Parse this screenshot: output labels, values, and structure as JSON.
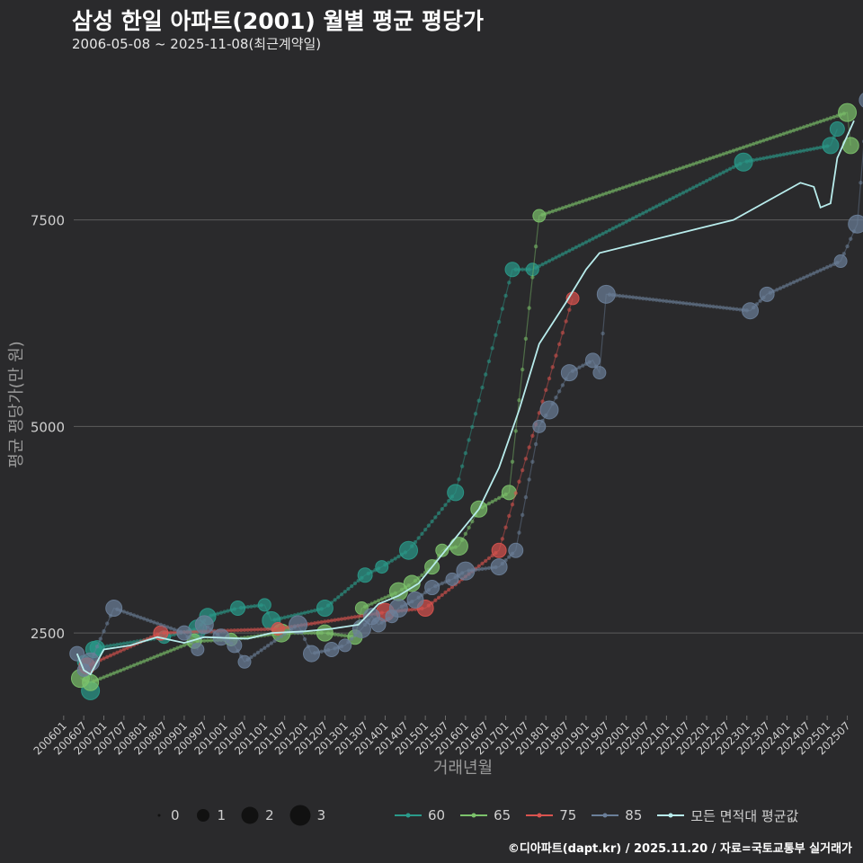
{
  "title": "삼성 한일 아파트(2001) 월별 평균 평당가",
  "subtitle": "2006-05-08 ~ 2025-11-08(최근계약일)",
  "caption": "©디아파트(dapt.kr) / 2025.11.20 / 자료=국토교통부 실거래가",
  "chart_data": {
    "type": "line",
    "title": "삼성 한일 아파트(2001) 월별 평균 평당가",
    "xlabel": "거래년월",
    "ylabel": "평균 평당가(만 원)",
    "x_unit": "months since 2006-01",
    "xlim": [
      3,
      236
    ],
    "ylim": [
      1500,
      9400
    ],
    "y_ticks": [
      2500,
      5000,
      7500
    ],
    "x_ticks": [
      "200601",
      "200607",
      "200701",
      "200707",
      "200801",
      "200807",
      "200901",
      "200907",
      "201001",
      "201007",
      "201101",
      "201107",
      "201201",
      "201207",
      "201301",
      "201307",
      "201401",
      "201407",
      "201501",
      "201507",
      "201601",
      "201607",
      "201701",
      "201707",
      "201801",
      "201807",
      "201901",
      "201907",
      "202001",
      "202007",
      "202101",
      "202107",
      "202201",
      "202207",
      "202301",
      "202307",
      "202401",
      "202407",
      "202501",
      "202507"
    ],
    "size_legend": {
      "title": "",
      "values": [
        "0",
        "1",
        "2",
        "3"
      ]
    },
    "series": [
      {
        "name": "60",
        "color": "#2a9a8a",
        "points": [
          [
            6,
            2150
          ],
          [
            8,
            1800
          ],
          [
            9,
            2300
          ],
          [
            10,
            2320
          ],
          [
            30,
            2450
          ],
          [
            40,
            2550
          ],
          [
            43,
            2700
          ],
          [
            52,
            2800
          ],
          [
            60,
            2840
          ],
          [
            62,
            2650
          ],
          [
            78,
            2800
          ],
          [
            90,
            3200
          ],
          [
            95,
            3300
          ],
          [
            103,
            3500
          ],
          [
            117,
            4200
          ],
          [
            134,
            6900
          ],
          [
            140,
            6900
          ],
          [
            203,
            8200
          ],
          [
            229,
            8400
          ],
          [
            231,
            8600
          ]
        ]
      },
      {
        "name": "65",
        "color": "#7cc26b",
        "points": [
          [
            5,
            1950
          ],
          [
            8,
            1900
          ],
          [
            39,
            2400
          ],
          [
            50,
            2420
          ],
          [
            65,
            2500
          ],
          [
            78,
            2500
          ],
          [
            87,
            2450
          ],
          [
            89,
            2800
          ],
          [
            100,
            3000
          ],
          [
            104,
            3100
          ],
          [
            110,
            3300
          ],
          [
            113,
            3500
          ],
          [
            118,
            3550
          ],
          [
            124,
            4000
          ],
          [
            133,
            4200
          ],
          [
            142,
            7550
          ],
          [
            234,
            8800
          ],
          [
            235,
            8400
          ]
        ]
      },
      {
        "name": "75",
        "color": "#d9534f",
        "points": [
          [
            7,
            2100
          ],
          [
            29,
            2500
          ],
          [
            64,
            2550
          ],
          [
            96,
            2750
          ],
          [
            108,
            2800
          ],
          [
            130,
            3500
          ],
          [
            152,
            6550
          ]
        ]
      },
      {
        "name": "85",
        "color": "#6b7f99",
        "points": [
          [
            4,
            2250
          ],
          [
            6,
            2050
          ],
          [
            8,
            2150
          ],
          [
            15,
            2800
          ],
          [
            36,
            2500
          ],
          [
            40,
            2300
          ],
          [
            42,
            2600
          ],
          [
            47,
            2450
          ],
          [
            51,
            2350
          ],
          [
            54,
            2150
          ],
          [
            70,
            2600
          ],
          [
            74,
            2250
          ],
          [
            80,
            2300
          ],
          [
            84,
            2350
          ],
          [
            89,
            2550
          ],
          [
            92,
            2700
          ],
          [
            94,
            2600
          ],
          [
            98,
            2700
          ],
          [
            100,
            2800
          ],
          [
            105,
            2900
          ],
          [
            110,
            3050
          ],
          [
            116,
            3150
          ],
          [
            120,
            3250
          ],
          [
            130,
            3300
          ],
          [
            135,
            3500
          ],
          [
            142,
            5000
          ],
          [
            145,
            5200
          ],
          [
            151,
            5650
          ],
          [
            158,
            5800
          ],
          [
            160,
            5650
          ],
          [
            162,
            6600
          ],
          [
            205,
            6400
          ],
          [
            210,
            6600
          ],
          [
            232,
            7000
          ],
          [
            237,
            7450
          ],
          [
            240,
            8950
          ]
        ]
      }
    ],
    "average": {
      "name": "모든 면적대 평균값",
      "color": "#b8ecec",
      "points": [
        [
          4,
          2250
        ],
        [
          6,
          2050
        ],
        [
          8,
          2000
        ],
        [
          12,
          2300
        ],
        [
          20,
          2350
        ],
        [
          28,
          2450
        ],
        [
          36,
          2380
        ],
        [
          42,
          2450
        ],
        [
          55,
          2430
        ],
        [
          62,
          2500
        ],
        [
          72,
          2520
        ],
        [
          80,
          2550
        ],
        [
          88,
          2600
        ],
        [
          94,
          2850
        ],
        [
          100,
          2950
        ],
        [
          106,
          3100
        ],
        [
          112,
          3400
        ],
        [
          118,
          3700
        ],
        [
          124,
          4000
        ],
        [
          130,
          4500
        ],
        [
          136,
          5200
        ],
        [
          142,
          6000
        ],
        [
          150,
          6500
        ],
        [
          156,
          6900
        ],
        [
          160,
          7100
        ],
        [
          200,
          7500
        ],
        [
          220,
          7950
        ],
        [
          224,
          7900
        ],
        [
          226,
          7650
        ],
        [
          229,
          7700
        ],
        [
          231,
          8250
        ],
        [
          236,
          8700
        ]
      ]
    }
  }
}
